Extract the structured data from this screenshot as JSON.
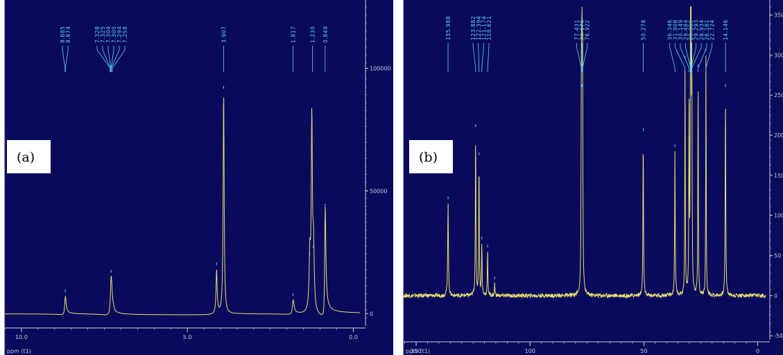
{
  "colors": {
    "background": "#0a0a5c",
    "trace": "#e8e070",
    "peak_label": "#5fd0ff",
    "axis": "#d0d0e0",
    "label_box": "#ffffff"
  },
  "chart_data": [
    {
      "type": "line",
      "panel_label": "(a)",
      "xlabel": "ppm (t1)",
      "x_range": [
        10.5,
        -0.2
      ],
      "y_range": [
        -5000,
        125000
      ],
      "x_ticks": [
        {
          "v": 10.0,
          "label": "10.0"
        },
        {
          "v": 5.0,
          "label": "5.0"
        },
        {
          "v": 0.0,
          "label": "0.0"
        }
      ],
      "y_ticks": [
        {
          "v": 100000,
          "label": "100000"
        },
        {
          "v": 50000,
          "label": "50000"
        },
        {
          "v": 0,
          "label": "0"
        }
      ],
      "peak_labels": [
        {
          "text": "8.685",
          "ppm": 8.685
        },
        {
          "text": "8.674",
          "ppm": 8.674
        },
        {
          "text": "7.328",
          "ppm": 7.328
        },
        {
          "text": "7.325",
          "ppm": 7.325
        },
        {
          "text": "7.304",
          "ppm": 7.304
        },
        {
          "text": "7.300",
          "ppm": 7.3
        },
        {
          "text": "7.294",
          "ppm": 7.294
        },
        {
          "text": "7.258",
          "ppm": 7.258
        },
        {
          "text": "3.907",
          "ppm": 3.907
        },
        {
          "text": "1.817",
          "ppm": 1.817
        },
        {
          "text": "1.230",
          "ppm": 1.23
        },
        {
          "text": "0.849",
          "ppm": 0.849
        }
      ],
      "peaks": [
        {
          "ppm": 8.68,
          "h": 7000,
          "w": 0.025,
          "d": 1
        },
        {
          "ppm": 7.3,
          "h": 15000,
          "w": 0.03,
          "d": 1
        },
        {
          "ppm": 4.12,
          "h": 18000,
          "w": 0.02,
          "d": 0
        },
        {
          "ppm": 3.907,
          "h": 90000,
          "w": 0.018,
          "d": 0
        },
        {
          "ppm": 1.817,
          "h": 5500,
          "w": 0.03,
          "d": 1
        },
        {
          "ppm": 1.31,
          "h": 22000,
          "w": 0.025,
          "d": 0
        },
        {
          "ppm": 1.25,
          "h": 77000,
          "w": 0.02,
          "d": 0
        },
        {
          "ppm": 1.2,
          "h": 25000,
          "w": 0.025,
          "d": 0
        },
        {
          "ppm": 0.849,
          "h": 42000,
          "w": 0.02,
          "d": 1
        }
      ]
    },
    {
      "type": "line",
      "panel_label": "(b)",
      "xlabel": "ppm (t1)",
      "x_range": [
        155.5,
        -3.5
      ],
      "y_range": [
        -55000,
        360000
      ],
      "x_ticks": [
        {
          "v": 150,
          "label": "150"
        },
        {
          "v": 100,
          "label": "100"
        },
        {
          "v": 50,
          "label": "50"
        },
        {
          "v": 0,
          "label": "0"
        }
      ],
      "y_ticks": [
        {
          "v": 350000,
          "label": "350"
        },
        {
          "v": 300000,
          "label": "300"
        },
        {
          "v": 250000,
          "label": "250"
        },
        {
          "v": 200000,
          "label": "200"
        },
        {
          "v": 150000,
          "label": "150"
        },
        {
          "v": 100000,
          "label": "100"
        },
        {
          "v": 50000,
          "label": "50"
        },
        {
          "v": 0,
          "label": "0"
        },
        {
          "v": -50000,
          "label": "-50"
        }
      ],
      "peak_labels": [
        {
          "text": "135.988",
          "ppm": 135.988
        },
        {
          "text": "123.882",
          "ppm": 123.882
        },
        {
          "text": "122.394",
          "ppm": 122.394
        },
        {
          "text": "121.174",
          "ppm": 121.174
        },
        {
          "text": "118.621",
          "ppm": 118.621
        },
        {
          "text": "77.431",
          "ppm": 77.431
        },
        {
          "text": "77.176",
          "ppm": 77.176
        },
        {
          "text": "76.922",
          "ppm": 76.922
        },
        {
          "text": "50.278",
          "ppm": 50.278
        },
        {
          "text": "36.346",
          "ppm": 36.346
        },
        {
          "text": "31.908",
          "ppm": 31.908
        },
        {
          "text": "30.149",
          "ppm": 30.149
        },
        {
          "text": "29.484",
          "ppm": 29.484
        },
        {
          "text": "29.359",
          "ppm": 29.359
        },
        {
          "text": "29.293",
          "ppm": 29.293
        },
        {
          "text": "28.934",
          "ppm": 28.934
        },
        {
          "text": "26.181",
          "ppm": 26.181
        },
        {
          "text": "22.724",
          "ppm": 22.724
        },
        {
          "text": "14.146",
          "ppm": 14.146
        }
      ],
      "peaks": [
        {
          "ppm": 135.988,
          "h": 115000,
          "w": 0.15
        },
        {
          "ppm": 123.882,
          "h": 205000,
          "w": 0.12
        },
        {
          "ppm": 122.394,
          "h": 170000,
          "w": 0.12
        },
        {
          "ppm": 121.174,
          "h": 65000,
          "w": 0.12
        },
        {
          "ppm": 118.621,
          "h": 55000,
          "w": 0.12
        },
        {
          "ppm": 115.5,
          "h": 15000,
          "w": 0.12
        },
        {
          "ppm": 77.431,
          "h": 255000,
          "w": 0.12
        },
        {
          "ppm": 77.176,
          "h": 255000,
          "w": 0.12
        },
        {
          "ppm": 76.922,
          "h": 255000,
          "w": 0.12
        },
        {
          "ppm": 50.278,
          "h": 200000,
          "w": 0.12
        },
        {
          "ppm": 36.346,
          "h": 180000,
          "w": 0.12
        },
        {
          "ppm": 31.908,
          "h": 290000,
          "w": 0.1
        },
        {
          "ppm": 30.149,
          "h": 235000,
          "w": 0.1
        },
        {
          "ppm": 29.484,
          "h": 300000,
          "w": 0.1
        },
        {
          "ppm": 29.359,
          "h": 290000,
          "w": 0.1
        },
        {
          "ppm": 29.293,
          "h": 280000,
          "w": 0.1
        },
        {
          "ppm": 28.934,
          "h": 270000,
          "w": 0.1
        },
        {
          "ppm": 26.181,
          "h": 280000,
          "w": 0.1
        },
        {
          "ppm": 22.724,
          "h": 300000,
          "w": 0.1
        },
        {
          "ppm": 14.146,
          "h": 255000,
          "w": 0.12
        }
      ]
    }
  ]
}
